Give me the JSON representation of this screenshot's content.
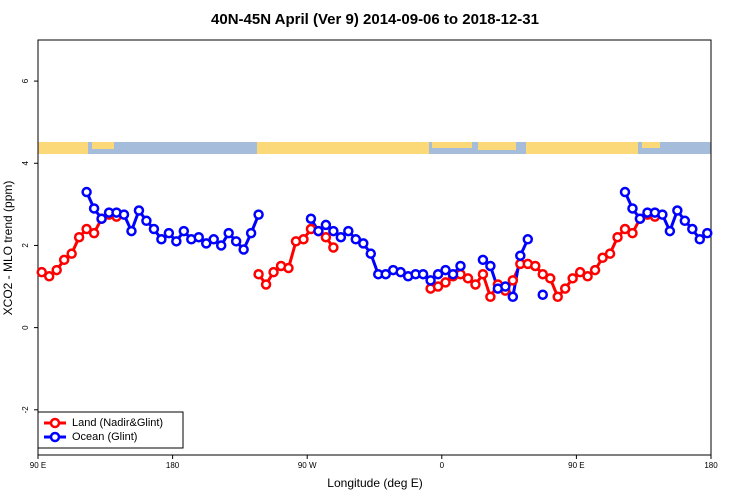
{
  "chart_data": {
    "type": "line",
    "title": "40N-45N April (Ver 9)   2014-09-06 to 2018-12-31",
    "x_label": "Longitude (deg E)",
    "y_label": "XCO2 - MLO trend (ppm)",
    "xlim": [
      90,
      540
    ],
    "xticks": [
      {
        "value": 90,
        "label": "90 E"
      },
      {
        "value": 180,
        "label": "180"
      },
      {
        "value": 270,
        "label": "90 W"
      },
      {
        "value": 360,
        "label": "0"
      },
      {
        "value": 450,
        "label": "90 E"
      },
      {
        "value": 540,
        "label": "180"
      }
    ],
    "ylim": [
      -3.1,
      7.0
    ],
    "yticks": [
      -2,
      0,
      2,
      4,
      6
    ],
    "legend": "bottom-left",
    "x": [
      92.5,
      97.5,
      102.5,
      107.5,
      112.5,
      117.5,
      122.5,
      127.5,
      132.5,
      137.5,
      142.5,
      147.5,
      152.5,
      157.5,
      162.5,
      167.5,
      172.5,
      177.5,
      182.5,
      187.5,
      192.5,
      197.5,
      202.5,
      207.5,
      212.5,
      217.5,
      222.5,
      227.5,
      232.5,
      237.5,
      242.5,
      247.5,
      252.5,
      257.5,
      262.5,
      267.5,
      272.5,
      277.5,
      282.5,
      287.5,
      292.5,
      297.5,
      302.5,
      307.5,
      312.5,
      317.5,
      322.5,
      327.5,
      332.5,
      337.5,
      342.5,
      347.5,
      352.5,
      357.5,
      362.5,
      367.5,
      372.5,
      377.5,
      382.5,
      387.5,
      392.5,
      397.5,
      402.5,
      407.5,
      412.5,
      417.5,
      422.5,
      427.5,
      432.5,
      437.5,
      442.5,
      447.5,
      452.5,
      457.5,
      462.5,
      467.5,
      472.5,
      477.5,
      482.5,
      487.5,
      492.5,
      497.5,
      502.5,
      507.5,
      512.5,
      517.5,
      522.5,
      527.5,
      532.5,
      537.5
    ],
    "series": [
      {
        "name": "Land (Nadir&Glint)",
        "color": "#ff0000",
        "values": [
          1.35,
          1.25,
          1.4,
          1.65,
          1.8,
          2.2,
          2.4,
          2.3,
          2.65,
          2.75,
          2.7,
          null,
          null,
          null,
          null,
          null,
          null,
          null,
          null,
          null,
          null,
          null,
          null,
          null,
          null,
          null,
          null,
          null,
          null,
          1.3,
          1.05,
          1.35,
          1.5,
          1.45,
          2.1,
          2.15,
          2.4,
          2.35,
          2.2,
          1.95,
          null,
          null,
          null,
          null,
          null,
          null,
          null,
          null,
          null,
          null,
          null,
          null,
          0.95,
          1.0,
          1.1,
          1.25,
          1.3,
          1.2,
          1.05,
          1.3,
          0.75,
          1.05,
          0.9,
          1.15,
          1.55,
          1.55,
          1.5,
          1.3,
          1.2,
          0.75,
          0.95,
          1.2,
          1.35,
          1.25,
          1.4,
          1.7,
          1.8,
          2.2,
          2.4,
          2.3,
          2.65,
          2.75,
          2.7,
          null,
          null,
          null,
          null,
          null,
          null,
          null
        ]
      },
      {
        "name": "Ocean (Glint)",
        "color": "#0000ff",
        "values": [
          null,
          null,
          null,
          null,
          null,
          null,
          3.3,
          2.9,
          2.65,
          2.8,
          2.8,
          2.75,
          2.35,
          2.85,
          2.6,
          2.4,
          2.15,
          2.3,
          2.1,
          2.35,
          2.15,
          2.2,
          2.05,
          2.15,
          2.0,
          2.3,
          2.1,
          1.9,
          2.3,
          2.75,
          null,
          null,
          null,
          null,
          null,
          null,
          2.65,
          2.35,
          2.5,
          2.35,
          2.2,
          2.35,
          2.15,
          2.05,
          1.8,
          1.3,
          1.3,
          1.4,
          1.35,
          1.25,
          1.3,
          1.3,
          1.15,
          1.3,
          1.4,
          1.3,
          1.5,
          null,
          null,
          1.65,
          1.5,
          0.95,
          1.0,
          0.75,
          1.75,
          2.15,
          null,
          0.8,
          null,
          null,
          null,
          null,
          null,
          null,
          null,
          null,
          null,
          null,
          3.3,
          2.9,
          2.65,
          2.8,
          2.8,
          2.75,
          2.35,
          2.85,
          2.6,
          2.4,
          2.15,
          2.3
        ]
      }
    ]
  }
}
